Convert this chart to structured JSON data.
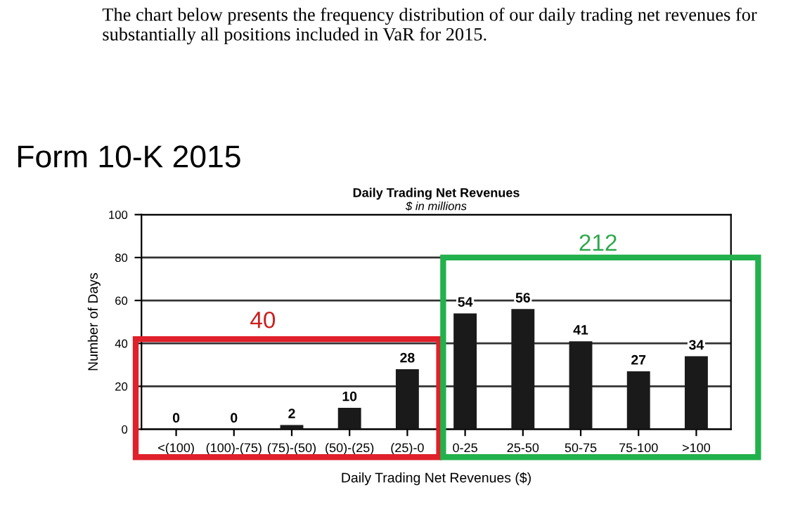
{
  "chart_data": {
    "type": "bar",
    "title": "Daily Trading Net Revenues",
    "subtitle": "$ in millions",
    "xlabel": "Daily Trading Net Revenues ($)",
    "ylabel": "Number of Days",
    "categories": [
      "<(100)",
      "(100)-(75)",
      "(75)-(50)",
      "(50)-(25)",
      "(25)-0",
      "0-25",
      "25-50",
      "50-75",
      "75-100",
      ">100"
    ],
    "values": [
      0,
      0,
      2,
      10,
      28,
      54,
      56,
      41,
      27,
      34
    ],
    "color": "#1a1a1a",
    "data_labels": true,
    "ylim": [
      0,
      100
    ],
    "yticks": [
      0,
      20,
      40,
      60,
      80,
      100
    ],
    "grid": "y",
    "annotations": [
      "The chart below presents the frequency distribution of our daily trading net revenues for substantially all positions included in VaR for 2015.",
      "Form 10-K 2015",
      "40",
      "212"
    ]
  }
}
